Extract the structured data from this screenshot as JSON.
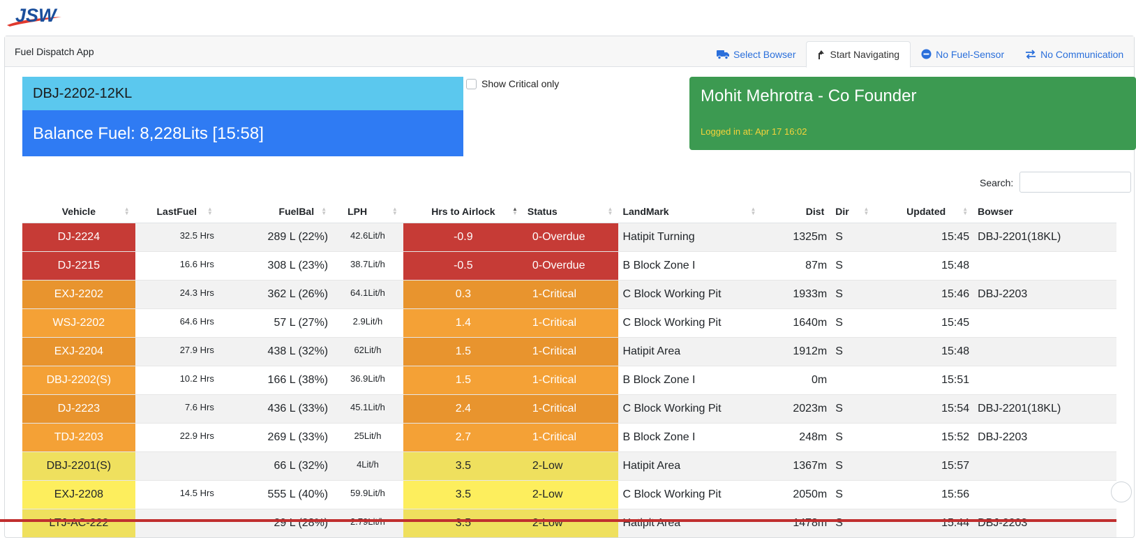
{
  "brand": {
    "logo_text": "JSW"
  },
  "app": {
    "title": "Fuel Dispatch App"
  },
  "tabs": [
    {
      "label": "Select Bowser",
      "icon": "truck-icon"
    },
    {
      "label": "Start Navigating",
      "icon": "turn-up-arrow-icon",
      "active": true
    },
    {
      "label": "No Fuel-Sensor",
      "icon": "minus-circle-icon"
    },
    {
      "label": "No Communication",
      "icon": "arrows-exchange-icon"
    }
  ],
  "bowser_card": {
    "title": "DBJ-2202-12KL",
    "balance": "Balance Fuel: 8,228Lits [15:58]"
  },
  "filter": {
    "critical_only_label": "Show Critical only",
    "checked": false
  },
  "user_card": {
    "name": "Mohit Mehrotra - Co Founder",
    "login": "Logged in at: Apr 17 16:02"
  },
  "search": {
    "label": "Search:",
    "value": ""
  },
  "colors": {
    "overdue": "#c63b36",
    "critical_a": "#e8942e",
    "critical_b": "#f4a136",
    "low_a": "#efe05e",
    "low_b": "#fdee5d",
    "bowser_head": "#5bc8ee",
    "bowser_body": "#2f7bf3",
    "user_card": "#3c9a51",
    "login_text": "#f5d33a"
  },
  "table": {
    "columns": [
      "Vehicle",
      "LastFuel",
      "FuelBal",
      "LPH",
      "Hrs to Airlock",
      "Status",
      "LandMark",
      "Dist",
      "Dir",
      "Updated",
      "Bowser"
    ],
    "rows": [
      {
        "vehicle": "DJ-2224",
        "last_fuel": "32.5 Hrs",
        "fuel_bal": "289 L (22%)",
        "lph": "42.6Lit/h",
        "hrs": "-0.9",
        "status": "0-Overdue",
        "landmark": "Hatipit Turning",
        "dist": "1325m",
        "dir": "S",
        "updated": "15:45",
        "bowser": "DBJ-2201(18KL)",
        "level": "overdue"
      },
      {
        "vehicle": "DJ-2215",
        "last_fuel": "16.6 Hrs",
        "fuel_bal": "308 L (23%)",
        "lph": "38.7Lit/h",
        "hrs": "-0.5",
        "status": "0-Overdue",
        "landmark": "B Block Zone I",
        "dist": "87m",
        "dir": "S",
        "updated": "15:48",
        "bowser": "",
        "level": "overdue"
      },
      {
        "vehicle": "EXJ-2202",
        "last_fuel": "24.3 Hrs",
        "fuel_bal": "362 L (26%)",
        "lph": "64.1Lit/h",
        "hrs": "0.3",
        "status": "1-Critical",
        "landmark": "C Block Working Pit",
        "dist": "1933m",
        "dir": "S",
        "updated": "15:46",
        "bowser": "DBJ-2203",
        "level": "critical"
      },
      {
        "vehicle": "WSJ-2202",
        "last_fuel": "64.6 Hrs",
        "fuel_bal": "57 L (27%)",
        "lph": "2.9Lit/h",
        "hrs": "1.4",
        "status": "1-Critical",
        "landmark": "C Block Working Pit",
        "dist": "1640m",
        "dir": "S",
        "updated": "15:45",
        "bowser": "",
        "level": "critical"
      },
      {
        "vehicle": "EXJ-2204",
        "last_fuel": "27.9 Hrs",
        "fuel_bal": "438 L (32%)",
        "lph": "62Lit/h",
        "hrs": "1.5",
        "status": "1-Critical",
        "landmark": "Hatipit Area",
        "dist": "1912m",
        "dir": "S",
        "updated": "15:48",
        "bowser": "",
        "level": "critical"
      },
      {
        "vehicle": "DBJ-2202(S)",
        "last_fuel": "10.2 Hrs",
        "fuel_bal": "166 L (38%)",
        "lph": "36.9Lit/h",
        "hrs": "1.5",
        "status": "1-Critical",
        "landmark": "B Block Zone I",
        "dist": "0m",
        "dir": "",
        "updated": "15:51",
        "bowser": "",
        "level": "critical"
      },
      {
        "vehicle": "DJ-2223",
        "last_fuel": "7.6 Hrs",
        "fuel_bal": "436 L (33%)",
        "lph": "45.1Lit/h",
        "hrs": "2.4",
        "status": "1-Critical",
        "landmark": "C Block Working Pit",
        "dist": "2023m",
        "dir": "S",
        "updated": "15:54",
        "bowser": "DBJ-2201(18KL)",
        "level": "critical"
      },
      {
        "vehicle": "TDJ-2203",
        "last_fuel": "22.9 Hrs",
        "fuel_bal": "269 L (33%)",
        "lph": "25Lit/h",
        "hrs": "2.7",
        "status": "1-Critical",
        "landmark": "B Block Zone I",
        "dist": "248m",
        "dir": "S",
        "updated": "15:52",
        "bowser": "DBJ-2203",
        "level": "critical"
      },
      {
        "vehicle": "DBJ-2201(S)",
        "last_fuel": "",
        "fuel_bal": "66 L (32%)",
        "lph": "4Lit/h",
        "hrs": "3.5",
        "status": "2-Low",
        "landmark": "Hatipit Area",
        "dist": "1367m",
        "dir": "S",
        "updated": "15:57",
        "bowser": "",
        "level": "low"
      },
      {
        "vehicle": "EXJ-2208",
        "last_fuel": "14.5 Hrs",
        "fuel_bal": "555 L (40%)",
        "lph": "59.9Lit/h",
        "hrs": "3.5",
        "status": "2-Low",
        "landmark": "C Block Working Pit",
        "dist": "2050m",
        "dir": "S",
        "updated": "15:56",
        "bowser": "",
        "level": "low"
      },
      {
        "vehicle": "LTJ-AC-222",
        "last_fuel": "",
        "fuel_bal": "29 L (28%)",
        "lph": "2.79Lit/h",
        "hrs": "3.5",
        "status": "2-Low",
        "landmark": "Hatipit Area",
        "dist": "1478m",
        "dir": "S",
        "updated": "15:44",
        "bowser": "DBJ-2203",
        "level": "low"
      }
    ]
  }
}
